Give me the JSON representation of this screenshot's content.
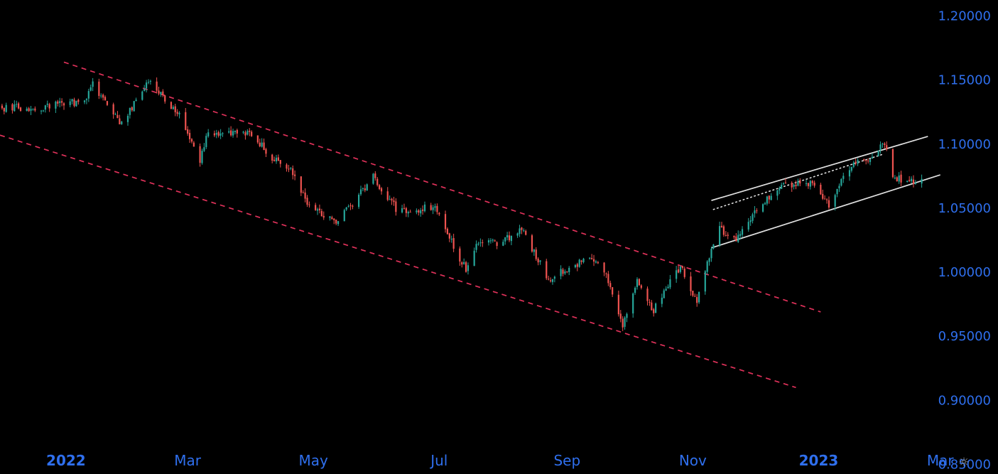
{
  "chart_data": {
    "type": "candlestick",
    "y_axis": {
      "side": "right",
      "ticks": [
        "1.20000",
        "1.15000",
        "1.10000",
        "1.05000",
        "1.00000",
        "0.95000",
        "0.90000",
        "0.85000"
      ],
      "range": [
        0.8425,
        1.2125
      ]
    },
    "x_axis": {
      "ticks": [
        {
          "label": "2022",
          "date": "2022-01-01",
          "emphasis": true
        },
        {
          "label": "Mar",
          "date": "2022-03-01"
        },
        {
          "label": "May",
          "date": "2022-05-01"
        },
        {
          "label": "Jul",
          "date": "2022-07-01"
        },
        {
          "label": "Sep",
          "date": "2022-09-01"
        },
        {
          "label": "Nov",
          "date": "2022-11-01"
        },
        {
          "label": "2023",
          "date": "2023-01-01",
          "emphasis": true
        },
        {
          "label": "Mar",
          "date": "2023-03-01"
        }
      ],
      "range": [
        "2021-11-30",
        "2023-03-29"
      ]
    },
    "price_path": [
      [
        "2021-12-01",
        1.128
      ],
      [
        "2021-12-20",
        1.129
      ],
      [
        "2022-01-10",
        1.134
      ],
      [
        "2022-01-14",
        1.147
      ],
      [
        "2022-01-28",
        1.116
      ],
      [
        "2022-02-10",
        1.148
      ],
      [
        "2022-02-24",
        1.125
      ],
      [
        "2022-03-07",
        1.087
      ],
      [
        "2022-03-10",
        1.106
      ],
      [
        "2022-03-31",
        1.11
      ],
      [
        "2022-04-12",
        1.088
      ],
      [
        "2022-04-20",
        1.082
      ],
      [
        "2022-04-28",
        1.052
      ],
      [
        "2022-05-13",
        1.04
      ],
      [
        "2022-05-30",
        1.074
      ],
      [
        "2022-06-10",
        1.05
      ],
      [
        "2022-06-17",
        1.047
      ],
      [
        "2022-06-28",
        1.052
      ],
      [
        "2022-07-05",
        1.03
      ],
      [
        "2022-07-14",
        1.002
      ],
      [
        "2022-07-19",
        1.022
      ],
      [
        "2022-08-01",
        1.024
      ],
      [
        "2022-08-10",
        1.033
      ],
      [
        "2022-08-23",
        0.995
      ],
      [
        "2022-09-12",
        1.012
      ],
      [
        "2022-09-20",
        0.997
      ],
      [
        "2022-09-28",
        0.959
      ],
      [
        "2022-10-05",
        0.995
      ],
      [
        "2022-10-13",
        0.97
      ],
      [
        "2022-10-26",
        1.005
      ],
      [
        "2022-11-03",
        0.976
      ],
      [
        "2022-11-10",
        1.02
      ],
      [
        "2022-11-14",
        1.035
      ],
      [
        "2022-11-21",
        1.025
      ],
      [
        "2022-12-05",
        1.055
      ],
      [
        "2022-12-15",
        1.068
      ],
      [
        "2022-12-30",
        1.07
      ],
      [
        "2023-01-06",
        1.053
      ],
      [
        "2023-01-16",
        1.082
      ],
      [
        "2023-01-26",
        1.09
      ],
      [
        "2023-02-02",
        1.101
      ],
      [
        "2023-02-06",
        1.075
      ],
      [
        "2023-02-15",
        1.07
      ],
      [
        "2023-02-20",
        1.071
      ]
    ],
    "annotations": [
      {
        "kind": "trendline",
        "style": "dashed",
        "color": "#e0315a",
        "from": [
          "2021-12-31",
          1.164
        ],
        "to": [
          "2023-01-02",
          0.969
        ]
      },
      {
        "kind": "trendline",
        "style": "dashed",
        "color": "#e0315a",
        "from": [
          "2021-11-30",
          1.107
        ],
        "to": [
          "2022-12-21",
          0.91
        ]
      },
      {
        "kind": "trendline",
        "style": "solid",
        "color": "#e0e0e0",
        "from": [
          "2022-11-10",
          1.056
        ],
        "to": [
          "2023-02-23",
          1.106
        ]
      },
      {
        "kind": "trendline",
        "style": "solid",
        "color": "#e0e0e0",
        "from": [
          "2022-11-10",
          1.019
        ],
        "to": [
          "2023-03-01",
          1.076
        ]
      },
      {
        "kind": "trendline",
        "style": "dotted",
        "color": "#e0e0e0",
        "from": [
          "2022-11-11",
          1.049
        ],
        "to": [
          "2023-02-01",
          1.092
        ]
      }
    ],
    "colors": {
      "background": "#000000",
      "up": "#26a69a",
      "down": "#ef5350",
      "axis_text": "#2f6fed",
      "settings_icon": "#9a9a9a"
    },
    "grid": false,
    "legend": "none"
  },
  "icons": {
    "settings": "sun-icon"
  },
  "settings_glyph": "☼"
}
